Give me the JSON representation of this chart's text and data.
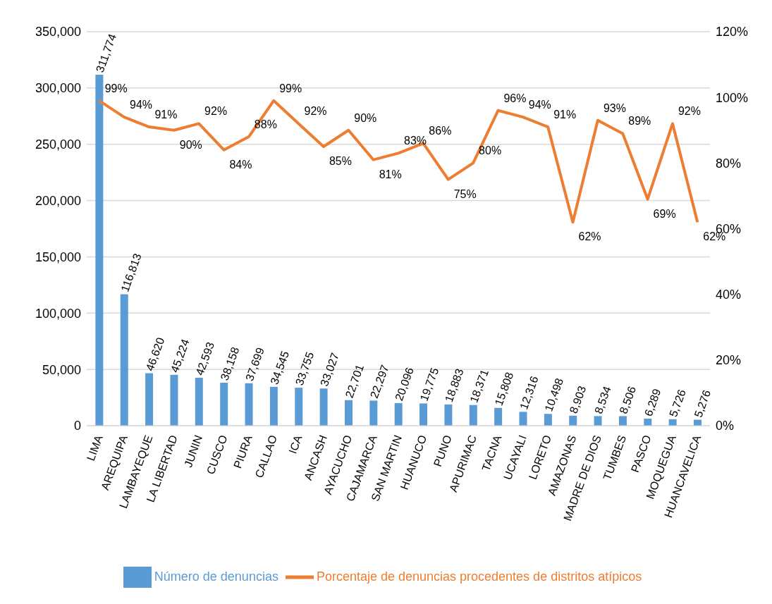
{
  "chart_data": {
    "type": "bar",
    "categories": [
      "LIMA",
      "AREQUIPA",
      "LAMBAYEQUE",
      "LA LIBERTAD",
      "JUNIN",
      "CUSCO",
      "PIURA",
      "CALLAO",
      "ICA",
      "ANCASH",
      "AYACUCHO",
      "CAJAMARCA",
      "SAN MARTIN",
      "HUANUCO",
      "PUNO",
      "APURIMAC",
      "TACNA",
      "UCAYALI",
      "LORETO",
      "AMAZONAS",
      "MADRE DE DIOS",
      "TUMBES",
      "PASCO",
      "MOQUEGUA",
      "HUANCAVELICA"
    ],
    "series": [
      {
        "name": "Número de denuncias",
        "color": "#5b9bd5",
        "values": [
          311774,
          116813,
          46620,
          45224,
          42593,
          38158,
          37699,
          34545,
          33755,
          33027,
          22701,
          22297,
          20096,
          19775,
          18883,
          18371,
          15808,
          12316,
          10498,
          8903,
          8534,
          8506,
          6289,
          5726,
          5276
        ],
        "value_labels": [
          "311,774",
          "116,813",
          "46,620",
          "45,224",
          "42,593",
          "38,158",
          "37,699",
          "34,545",
          "33,755",
          "33,027",
          "22,701",
          "22,297",
          "20,096",
          "19,775",
          "18,883",
          "18,371",
          "15,808",
          "12,316",
          "10,498",
          "8,903",
          "8,534",
          "8,506",
          "6,289",
          "5,726",
          "5,276"
        ]
      },
      {
        "name": "Porcentaje de denuncias procedentes de distritos atípicos",
        "type": "line",
        "axis": "y2",
        "color": "#ed7d31",
        "values": [
          99,
          94,
          91,
          90,
          92,
          84,
          88,
          99,
          92,
          85,
          90,
          81,
          83,
          86,
          75,
          80,
          96,
          94,
          91,
          62,
          93,
          89,
          69,
          92,
          62
        ],
        "value_labels": [
          "99%",
          "94%",
          "91%",
          "90%",
          "92%",
          "84%",
          "88%",
          "99%",
          "92%",
          "85%",
          "90%",
          "81%",
          "83%",
          "86%",
          "75%",
          "80%",
          "96%",
          "94%",
          "91%",
          "62%",
          "93%",
          "89%",
          "69%",
          "92%",
          "62%"
        ]
      }
    ],
    "ylim": [
      0,
      350000
    ],
    "yticks": [
      {
        "value": 0,
        "label": "0"
      },
      {
        "value": 50000,
        "label": "50,000"
      },
      {
        "value": 100000,
        "label": "100,000"
      },
      {
        "value": 150000,
        "label": "150,000"
      },
      {
        "value": 200000,
        "label": "200,000"
      },
      {
        "value": 250000,
        "label": "250,000"
      },
      {
        "value": 300000,
        "label": "300,000"
      },
      {
        "value": 350000,
        "label": "350,000"
      }
    ],
    "y2lim": [
      0,
      120
    ],
    "y2ticks": [
      {
        "value": 0,
        "label": "0%"
      },
      {
        "value": 20,
        "label": "20%"
      },
      {
        "value": 40,
        "label": "40%"
      },
      {
        "value": 60,
        "label": "60%"
      },
      {
        "value": 80,
        "label": "80%"
      },
      {
        "value": 100,
        "label": "100%"
      },
      {
        "value": 120,
        "label": "120%"
      }
    ],
    "grid": "y",
    "legend": "bottom",
    "marker": "none",
    "line_style": "solid"
  }
}
